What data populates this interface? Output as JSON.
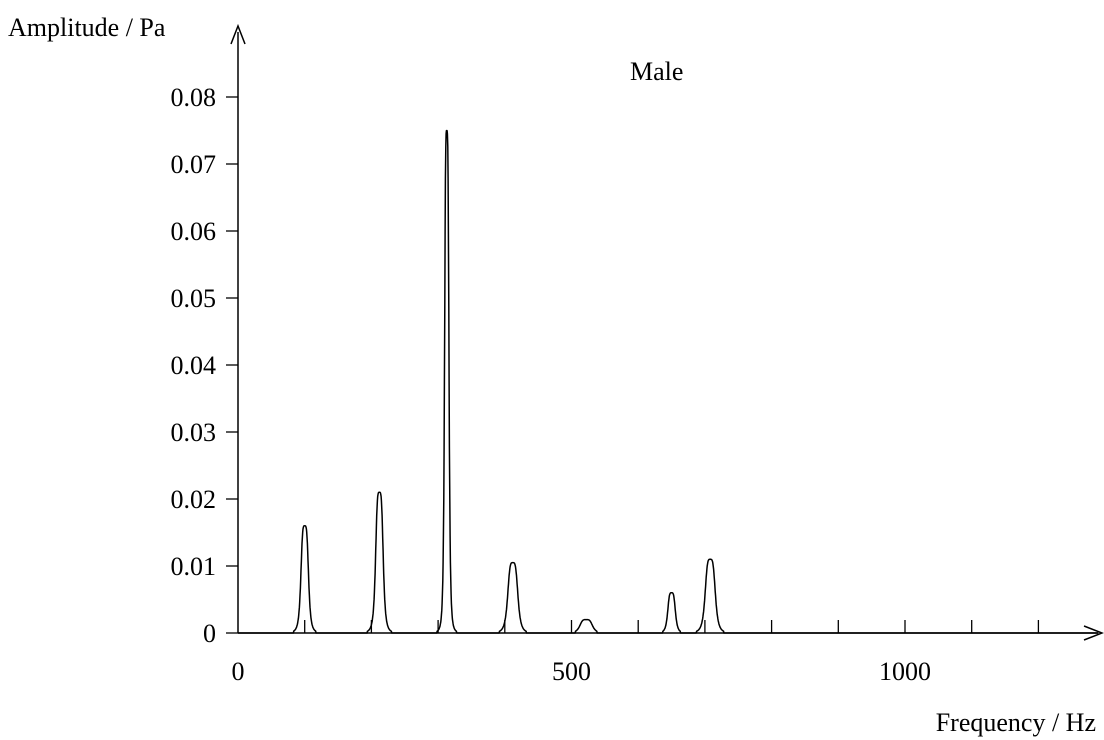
{
  "chart_data": {
    "type": "line",
    "title": "Male",
    "xlabel": "Frequency / Hz",
    "ylabel": "Amplitude / Pa",
    "xlim": [
      0,
      1300
    ],
    "ylim": [
      0,
      0.085
    ],
    "x_tick_labels": [
      "0",
      "500",
      "1000"
    ],
    "x_minor_ticks": [
      100,
      200,
      300,
      400,
      500,
      600,
      700,
      800,
      900,
      1000,
      1100,
      1200
    ],
    "y_tick_labels": [
      "0",
      "0.01",
      "0.02",
      "0.03",
      "0.04",
      "0.05",
      "0.06",
      "0.07",
      "0.08"
    ],
    "grid": false,
    "peaks": [
      {
        "frequency": 100,
        "amplitude": 0.016
      },
      {
        "frequency": 212,
        "amplitude": 0.021
      },
      {
        "frequency": 313,
        "amplitude": 0.075
      },
      {
        "frequency": 412,
        "amplitude": 0.0105
      },
      {
        "frequency": 522,
        "amplitude": 0.002
      },
      {
        "frequency": 650,
        "amplitude": 0.006
      },
      {
        "frequency": 708,
        "amplitude": 0.011
      }
    ]
  }
}
